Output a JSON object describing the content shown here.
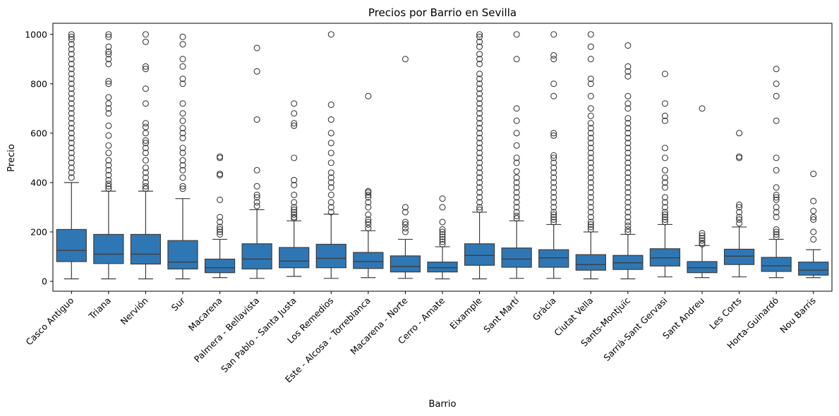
{
  "chart_data": {
    "type": "boxplot",
    "title": "Precios por Barrio en Sevilla",
    "xlabel": "Barrio",
    "ylabel": "Precio",
    "ylim": [
      -40,
      1045
    ],
    "yticks": [
      0,
      200,
      400,
      600,
      800,
      1000
    ],
    "grid": false,
    "box_color": "#2f77b4",
    "line_color": "#3d3d3d",
    "categories": [
      "Casco Antiguo",
      "Triana",
      "Nervión",
      "Sur",
      "Macarena",
      "Palmera - Bellavista",
      "San Pablo - Santa Justa",
      "Los Remedios",
      "Este - Alcosa - Torreblanca",
      "Macarena - Norte",
      "Cerro - Amate",
      "Eixample",
      "Sant Martí",
      "Gràcia",
      "Ciutat Vella",
      "Sants-Montjuïc",
      "Sarrià-Sant Gervasi",
      "Sant Andreu",
      "Les Corts",
      "Horta-Guinardó",
      "Nou Barris"
    ],
    "boxes": [
      {
        "min": 10,
        "q1": 80,
        "median": 125,
        "q3": 210,
        "max": 400,
        "outliers": [
          420,
          440,
          460,
          480,
          500,
          520,
          540,
          560,
          580,
          600,
          620,
          640,
          660,
          680,
          700,
          720,
          740,
          760,
          780,
          800,
          820,
          840,
          860,
          880,
          900,
          920,
          940,
          960,
          980,
          990,
          1000
        ]
      },
      {
        "min": 10,
        "q1": 72,
        "median": 110,
        "q3": 190,
        "max": 365,
        "outliers": [
          375,
          385,
          395,
          410,
          430,
          450,
          470,
          490,
          520,
          550,
          590,
          630,
          680,
          700,
          720,
          745,
          800,
          810,
          880,
          900,
          920,
          930,
          950,
          990,
          1000
        ]
      },
      {
        "min": 10,
        "q1": 70,
        "median": 110,
        "q3": 190,
        "max": 365,
        "outliers": [
          375,
          385,
          400,
          420,
          440,
          460,
          490,
          520,
          540,
          560,
          570,
          600,
          625,
          640,
          720,
          780,
          860,
          870,
          970,
          1000
        ]
      },
      {
        "min": 10,
        "q1": 50,
        "median": 78,
        "q3": 165,
        "max": 335,
        "outliers": [
          375,
          385,
          420,
          450,
          470,
          490,
          520,
          540,
          580,
          600,
          620,
          650,
          680,
          720,
          800,
          820,
          870,
          900,
          960,
          990
        ]
      },
      {
        "min": 15,
        "q1": 35,
        "median": 55,
        "q3": 90,
        "max": 170,
        "outliers": [
          190,
          200,
          210,
          220,
          240,
          260,
          330,
          430,
          435,
          500,
          505
        ]
      },
      {
        "min": 12,
        "q1": 50,
        "median": 90,
        "q3": 152,
        "max": 290,
        "outliers": [
          305,
          320,
          340,
          350,
          385,
          450,
          655,
          850,
          945
        ]
      },
      {
        "min": 20,
        "q1": 55,
        "median": 82,
        "q3": 137,
        "max": 245,
        "outliers": [
          255,
          260,
          270,
          280,
          290,
          300,
          320,
          350,
          390,
          410,
          500,
          630,
          640,
          680,
          720
        ]
      },
      {
        "min": 12,
        "q1": 55,
        "median": 93,
        "q3": 150,
        "max": 272,
        "outliers": [
          280,
          300,
          320,
          350,
          380,
          400,
          420,
          440,
          480,
          520,
          560,
          600,
          655,
          715,
          1000
        ]
      },
      {
        "min": 15,
        "q1": 52,
        "median": 80,
        "q3": 117,
        "max": 205,
        "outliers": [
          215,
          230,
          240,
          250,
          270,
          300,
          320,
          340,
          350,
          360,
          365,
          750
        ]
      },
      {
        "min": 12,
        "q1": 38,
        "median": 60,
        "q3": 103,
        "max": 170,
        "outliers": [
          200,
          215,
          230,
          240,
          280,
          300,
          900
        ]
      },
      {
        "min": 10,
        "q1": 38,
        "median": 55,
        "q3": 78,
        "max": 140,
        "outliers": [
          150,
          160,
          170,
          180,
          190,
          200,
          210,
          240,
          300,
          335
        ]
      },
      {
        "min": 10,
        "q1": 65,
        "median": 105,
        "q3": 152,
        "max": 280,
        "outliers": [
          290,
          300,
          320,
          340,
          360,
          380,
          400,
          420,
          440,
          460,
          480,
          500,
          520,
          540,
          560,
          580,
          600,
          620,
          640,
          660,
          680,
          700,
          720,
          740,
          760,
          780,
          800,
          820,
          840,
          880,
          900,
          920,
          950,
          970,
          990,
          1000
        ]
      },
      {
        "min": 12,
        "q1": 57,
        "median": 90,
        "q3": 135,
        "max": 245,
        "outliers": [
          255,
          265,
          280,
          300,
          320,
          340,
          360,
          380,
          400,
          420,
          445,
          480,
          500,
          550,
          600,
          650,
          700,
          900,
          1000
        ]
      },
      {
        "min": 12,
        "q1": 57,
        "median": 95,
        "q3": 128,
        "max": 230,
        "outliers": [
          240,
          250,
          260,
          270,
          280,
          300,
          320,
          340,
          360,
          380,
          400,
          420,
          440,
          460,
          480,
          500,
          510,
          590,
          600,
          750,
          800,
          900,
          915,
          1000
        ]
      },
      {
        "min": 10,
        "q1": 45,
        "median": 68,
        "q3": 108,
        "max": 200,
        "outliers": [
          210,
          220,
          230,
          240,
          260,
          280,
          300,
          320,
          340,
          360,
          380,
          400,
          420,
          440,
          460,
          480,
          500,
          520,
          540,
          560,
          580,
          600,
          620,
          640,
          670,
          700,
          750,
          800,
          820,
          900,
          950,
          1000
        ]
      },
      {
        "min": 10,
        "q1": 48,
        "median": 75,
        "q3": 105,
        "max": 190,
        "outliers": [
          200,
          210,
          225,
          240,
          260,
          280,
          300,
          320,
          340,
          360,
          380,
          400,
          420,
          440,
          460,
          480,
          500,
          520,
          540,
          560,
          580,
          600,
          620,
          640,
          660,
          700,
          720,
          750,
          830,
          850,
          870,
          955
        ]
      },
      {
        "min": 18,
        "q1": 62,
        "median": 95,
        "q3": 132,
        "max": 230,
        "outliers": [
          240,
          250,
          260,
          270,
          280,
          300,
          320,
          340,
          380,
          400,
          420,
          450,
          500,
          540,
          650,
          670,
          720,
          840
        ]
      },
      {
        "min": 15,
        "q1": 35,
        "median": 55,
        "q3": 80,
        "max": 145,
        "outliers": [
          150,
          155,
          165,
          175,
          185,
          195,
          700
        ]
      },
      {
        "min": 18,
        "q1": 68,
        "median": 102,
        "q3": 130,
        "max": 220,
        "outliers": [
          235,
          250,
          260,
          280,
          300,
          310,
          500,
          505,
          600
        ]
      },
      {
        "min": 15,
        "q1": 40,
        "median": 63,
        "q3": 97,
        "max": 170,
        "outliers": [
          180,
          190,
          200,
          210,
          260,
          280,
          300,
          330,
          340,
          350,
          380,
          450,
          500,
          650,
          750,
          800,
          860
        ]
      },
      {
        "min": 15,
        "q1": 25,
        "median": 45,
        "q3": 78,
        "max": 128,
        "outliers": [
          170,
          200,
          250,
          260,
          285,
          325,
          435
        ]
      }
    ]
  }
}
